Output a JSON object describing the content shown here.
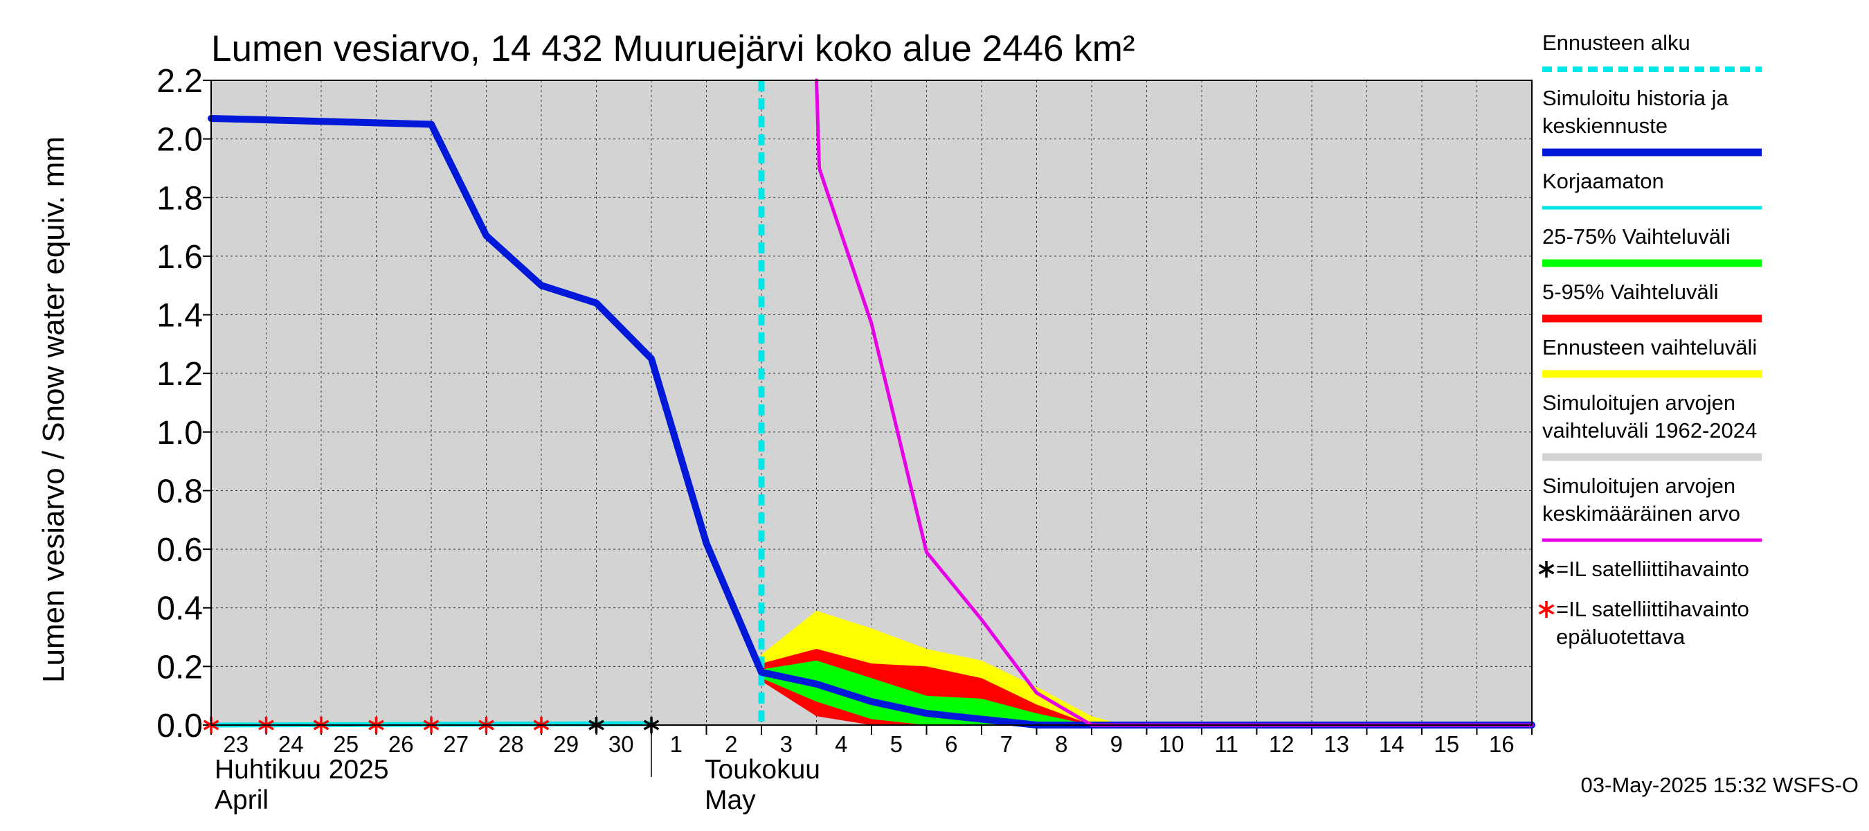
{
  "chart_data": {
    "type": "line",
    "title": "Lumen vesiarvo, 14 432 Muuruejärvi koko alue 2446 km²",
    "ylabel": "Lumen vesiarvo / Snow water equiv.    mm",
    "ylim": [
      0,
      2.2
    ],
    "yticks": [
      "0.0",
      "0.2",
      "0.4",
      "0.6",
      "0.8",
      "1.0",
      "1.2",
      "1.4",
      "1.6",
      "1.8",
      "2.0",
      "2.2"
    ],
    "xlim": [
      -10,
      14
    ],
    "x_tick_labels": [
      "23",
      "24",
      "25",
      "26",
      "27",
      "28",
      "29",
      "30",
      "1",
      "2",
      "3",
      "4",
      "5",
      "6",
      "7",
      "8",
      "9",
      "10",
      "11",
      "12",
      "13",
      "14",
      "15",
      "16"
    ],
    "months": [
      {
        "line1": "Huhtikuu  2025",
        "line2": "April"
      },
      {
        "line1": "Toukokuu",
        "line2": "May"
      }
    ],
    "forecast_start_day": 0,
    "background_range": {
      "name": "Simuloitujen arvojen vaihteluväli 1962-2024",
      "color": "#d3d3d3"
    },
    "series": [
      {
        "name": "Simuloitu historia ja keskiennuste",
        "color": "#0018d8",
        "points": [
          [
            -10,
            2.07
          ],
          [
            -9,
            2.065
          ],
          [
            -8,
            2.06
          ],
          [
            -7,
            2.055
          ],
          [
            -6,
            2.05
          ],
          [
            -5,
            1.67
          ],
          [
            -4,
            1.5
          ],
          [
            -3,
            1.44
          ],
          [
            -2,
            1.25
          ],
          [
            -1,
            0.62
          ],
          [
            0,
            0.18
          ],
          [
            1,
            0.14
          ],
          [
            2,
            0.08
          ],
          [
            3,
            0.04
          ],
          [
            4,
            0.02
          ],
          [
            5,
            0.0
          ],
          [
            14,
            0.0
          ]
        ]
      },
      {
        "name": "Korjaamaton",
        "color": "#00e5e5",
        "points": [
          [
            -10,
            0.0
          ],
          [
            -2,
            0.005
          ]
        ]
      },
      {
        "name": "Simuloitujen arvojen keskimääräinen arvo",
        "color": "#e600e6",
        "points": [
          [
            1,
            2.5
          ],
          [
            1.05,
            1.9
          ],
          [
            2,
            1.37
          ],
          [
            3,
            0.59
          ],
          [
            4,
            0.36
          ],
          [
            5,
            0.11
          ],
          [
            6,
            0.0
          ],
          [
            14,
            0.0
          ]
        ]
      }
    ],
    "bands": [
      {
        "name": "Ennusteen vaihteluväli",
        "color": "#ffff00",
        "upper": [
          [
            0,
            0.24
          ],
          [
            1,
            0.39
          ],
          [
            2,
            0.33
          ],
          [
            3,
            0.26
          ],
          [
            4,
            0.22
          ],
          [
            5,
            0.13
          ],
          [
            6,
            0.03
          ],
          [
            6.6,
            0.0
          ]
        ],
        "lower": [
          [
            0,
            0.15
          ],
          [
            1,
            0.04
          ],
          [
            2,
            0.01
          ],
          [
            3,
            0.0
          ],
          [
            6.6,
            0.0
          ]
        ]
      },
      {
        "name": "5-95% Vaihteluväli",
        "color": "#ff0000",
        "upper": [
          [
            0,
            0.21
          ],
          [
            1,
            0.26
          ],
          [
            2,
            0.21
          ],
          [
            3,
            0.2
          ],
          [
            4,
            0.16
          ],
          [
            5,
            0.07
          ],
          [
            6,
            0.0
          ]
        ],
        "lower": [
          [
            0,
            0.15
          ],
          [
            1,
            0.03
          ],
          [
            2,
            0.0
          ],
          [
            6,
            0.0
          ]
        ]
      },
      {
        "name": "25-75% Vaihteluväli",
        "color": "#00ff00",
        "upper": [
          [
            0,
            0.19
          ],
          [
            1,
            0.22
          ],
          [
            2,
            0.16
          ],
          [
            3,
            0.1
          ],
          [
            4,
            0.09
          ],
          [
            5,
            0.04
          ],
          [
            6,
            0.0
          ]
        ],
        "lower": [
          [
            0,
            0.16
          ],
          [
            1,
            0.08
          ],
          [
            2,
            0.02
          ],
          [
            3,
            0.0
          ],
          [
            6,
            0.0
          ]
        ]
      }
    ],
    "observations": [
      {
        "label": "*=IL satelliittihavainto",
        "color": "#000000",
        "days": [
          -3,
          -2
        ]
      },
      {
        "label": "*=IL satelliittihavainto epäluotettava",
        "color": "#ff0000",
        "days": [
          -10,
          -9,
          -8,
          -7,
          -6,
          -5,
          -4
        ]
      }
    ],
    "legend": {
      "position": "right",
      "items": [
        {
          "lines": [
            "Ennusteen alku"
          ],
          "color": "#00e5e5",
          "style": "dashed"
        },
        {
          "lines": [
            "Simuloitu historia ja",
            "keskiennuste"
          ],
          "color": "#0018d8",
          "style": "thick"
        },
        {
          "lines": [
            "Korjaamaton"
          ],
          "color": "#00e5e5",
          "style": "thin"
        },
        {
          "lines": [
            "25-75% Vaihteluväli"
          ],
          "color": "#00ff00",
          "style": "thick"
        },
        {
          "lines": [
            "5-95% Vaihteluväli"
          ],
          "color": "#ff0000",
          "style": "thick"
        },
        {
          "lines": [
            "Ennusteen vaihteluväli"
          ],
          "color": "#ffff00",
          "style": "thick"
        },
        {
          "lines": [
            "Simuloitujen arvojen",
            "vaihteluväli 1962-2024"
          ],
          "color": "#d3d3d3",
          "style": "thick"
        },
        {
          "lines": [
            "Simuloitujen arvojen",
            "keskimääräinen arvo"
          ],
          "color": "#e600e6",
          "style": "thin"
        },
        {
          "lines": [
            "=IL satelliittihavainto"
          ],
          "color": "#000000",
          "style": "star"
        },
        {
          "lines": [
            "=IL satelliittihavainto",
            "epäluotettava"
          ],
          "color": "#ff0000",
          "style": "star"
        }
      ]
    },
    "grid": true,
    "footer": "03-May-2025 15:32 WSFS-O"
  }
}
